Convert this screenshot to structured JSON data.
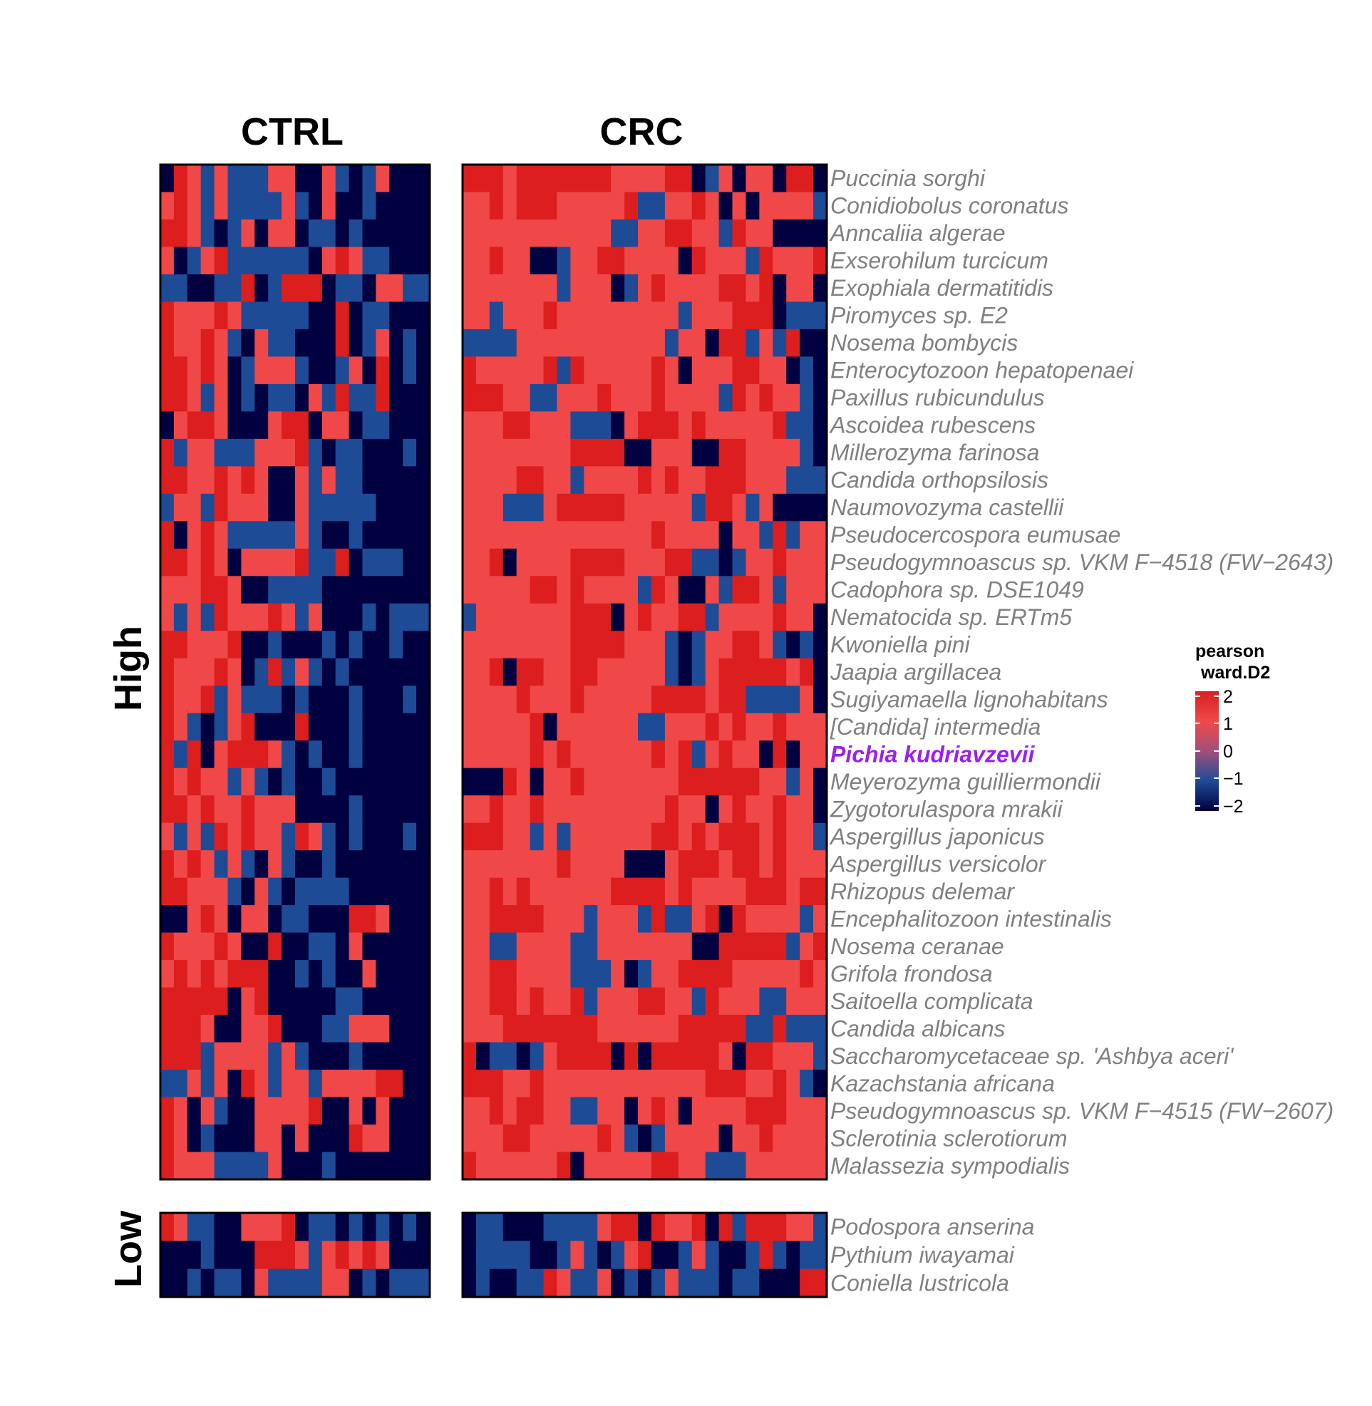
{
  "chart_data": {
    "type": "heatmap",
    "column_groups": [
      "CTRL",
      "CRC"
    ],
    "row_groups": [
      "High",
      "Low"
    ],
    "columns_per_group": {
      "CTRL": 20,
      "CRC": 27
    },
    "colorscale": {
      "low": "#000040",
      "mid_low": "#1e4b96",
      "mid_high": "#f04848",
      "high": "#dc1e1e"
    },
    "legend": {
      "title_line1": "pearson",
      "title_line2": "ward.D2",
      "ticks": [
        "2",
        "1",
        "0",
        "−1",
        "−2"
      ]
    },
    "high_rows": [
      {
        "label": "Puccinia sorghi",
        "highlight": false
      },
      {
        "label": "Conidiobolus coronatus",
        "highlight": false
      },
      {
        "label": "Anncaliia algerae",
        "highlight": false
      },
      {
        "label": "Exserohilum turcicum",
        "highlight": false
      },
      {
        "label": "Exophiala dermatitidis",
        "highlight": false
      },
      {
        "label": "Piromyces sp. E2",
        "highlight": false
      },
      {
        "label": "Nosema bombycis",
        "highlight": false
      },
      {
        "label": "Enterocytozoon hepatopenaei",
        "highlight": false
      },
      {
        "label": "Paxillus rubicundulus",
        "highlight": false
      },
      {
        "label": "Ascoidea rubescens",
        "highlight": false
      },
      {
        "label": "Millerozyma farinosa",
        "highlight": false
      },
      {
        "label": "Candida orthopsilosis",
        "highlight": false
      },
      {
        "label": "Naumovozyma castellii",
        "highlight": false
      },
      {
        "label": "Pseudocercospora eumusae",
        "highlight": false
      },
      {
        "label": "Pseudogymnoascus sp. VKM F−4518 (FW−2643)",
        "highlight": false
      },
      {
        "label": "Cadophora sp. DSE1049",
        "highlight": false
      },
      {
        "label": "Nematocida sp. ERTm5",
        "highlight": false
      },
      {
        "label": "Kwoniella pini",
        "highlight": false
      },
      {
        "label": "Jaapia argillacea",
        "highlight": false
      },
      {
        "label": "Sugiyamaella lignohabitans",
        "highlight": false
      },
      {
        "label": "[Candida] intermedia",
        "highlight": false
      },
      {
        "label": "Pichia kudriavzevii",
        "highlight": true
      },
      {
        "label": "Meyerozyma guilliermondii",
        "highlight": false
      },
      {
        "label": "Zygotorulaspora mrakii",
        "highlight": false
      },
      {
        "label": "Aspergillus japonicus",
        "highlight": false
      },
      {
        "label": "Aspergillus versicolor",
        "highlight": false
      },
      {
        "label": "Rhizopus delemar",
        "highlight": false
      },
      {
        "label": "Encephalitozoon intestinalis",
        "highlight": false
      },
      {
        "label": "Nosema ceranae",
        "highlight": false
      },
      {
        "label": "Grifola frondosa",
        "highlight": false
      },
      {
        "label": "Saitoella complicata",
        "highlight": false
      },
      {
        "label": "Candida albicans",
        "highlight": false
      },
      {
        "label": "Saccharomycetaceae sp. 'Ashbya aceri'",
        "highlight": false
      },
      {
        "label": "Kazachstania africana",
        "highlight": false
      },
      {
        "label": "Pseudogymnoascus sp. VKM F−4515 (FW−2607)",
        "highlight": false
      },
      {
        "label": "Sclerotinia sclerotiorum",
        "highlight": false
      },
      {
        "label": "Malassezia sympodialis",
        "highlight": false
      }
    ],
    "low_rows": [
      {
        "label": "Podospora anserina",
        "highlight": false
      },
      {
        "label": "Pythium iwayamai",
        "highlight": false
      },
      {
        "label": "Coniella lustricola",
        "highlight": false
      }
    ],
    "cells": {
      "high": {
        "CTRL": [
          "03212111220021012000",
          "23212111121020010000",
          "33210120220110100000",
          "20123111111023211000",
          "11001130133301102211",
          "32223211111003011000",
          "32232102110003012010",
          "33232012221001203010",
          "33212010110213113000",
          "02332000233022011000",
          "31221112223101100010",
          "33223232002121100000",
          "12213222002111110000",
          "30232111112100100000",
          "33232022223113011100",
          "22233200111100000000",
          "21213222321200010111",
          "33222300100010100100",
          "32223201312101000000",
          "32231211101000100010",
          "32101230003000100000",
          "31302333210100100000",
          "32322121010010000000",
          "33232232220000100000",
          "21213232213210100010",
          "32321210210010000000",
          "33222102101111000000",
          "00232022011000332000",
          "32223200300110200000",
          "23232333001010020000",
          "33333023000001100000",
          "33320022300011222000",
          "33312222121000100000",
          "11212032122122223300",
          "32021002222300202000",
          "32010002202000322000",
          "32221111200010000000"
        ],
        "CRC": [
          "333233333332222330120220330",
          "223233322222311223202022221",
          "222222222221122332213220000",
          "223220012233222203222132223",
          "222222212220123222233230220",
          "221222322222222212223330111",
          "111122222222222122033121300",
          "322222313222223202223322010",
          "333221122232223222213232210",
          "222332221110233323222223110",
          "222222223333002220033222210",
          "222233221222232322333222111",
          "222111233333222221332120000",
          "222222222222223222202213122",
          "223022223333222331101223222",
          "222223323222213200213321222",
          "122222223330232233122223220",
          "222222223333222101223321010",
          "223033223322222101233333230",
          "222232223222223333233111120",
          "222223022222211222323223222",
          "222223232222223231232203022",
          "000320223222222233333322120",
          "223223222222222322023223220",
          "333221212222223323233323221",
          "222222232222000233323323222",
          "223232222223333232222333233",
          "223333222122213112303222212",
          "221122221122222220033333123",
          "223322221112012233332222232",
          "223323223122233221322211222",
          "222333333322222233333113111",
          "301101233330303333320332221",
          "333223222222222222333223210",
          "223233221122023202222333222",
          "222332222232101222202232222",
          "322222230222223322111222222"
        ]
      },
      "low": {
        "CTRL": [
          "32110022230110101010",
          "00010003332123232000",
          "00101102111122010111"
        ],
        "CRC": [
          "011000111123303223031333221",
          "011110012101230012100131011",
          "010011321120101211101100033"
        ]
      }
    }
  }
}
